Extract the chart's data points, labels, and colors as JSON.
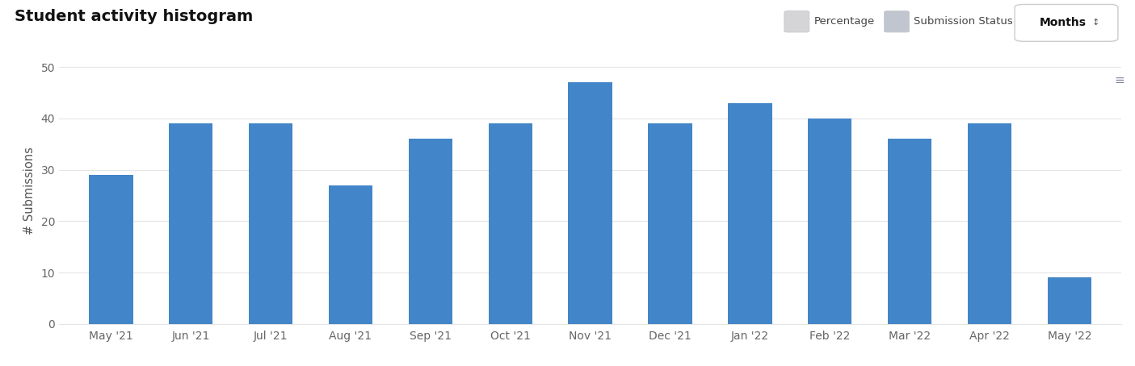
{
  "title": "Student activity histogram",
  "ylabel": "# Submissions",
  "categories": [
    "May '21",
    "Jun '21",
    "Jul '21",
    "Aug '21",
    "Sep '21",
    "Oct '21",
    "Nov '21",
    "Dec '21",
    "Jan '22",
    "Feb '22",
    "Mar '22",
    "Apr '22",
    "May '22"
  ],
  "values": [
    29,
    39,
    39,
    27,
    36,
    39,
    47,
    39,
    43,
    40,
    36,
    39,
    9
  ],
  "bar_color": "#4285C8",
  "background_color": "#ffffff",
  "ylim": [
    0,
    52
  ],
  "yticks": [
    0,
    10,
    20,
    30,
    40,
    50
  ],
  "grid_color": "#e5e5e5",
  "title_fontsize": 14,
  "axis_label_fontsize": 10.5,
  "tick_fontsize": 10,
  "legend_labels": [
    "Percentage",
    "Submission Status"
  ],
  "legend_icon_color1": "#d5d5d8",
  "legend_icon_color2": "#c0c5cf",
  "legend_icon_border": "#c8c8cc",
  "dropdown_label": "Months",
  "hamburger": "≡",
  "hamburger_color": "#7a8499"
}
